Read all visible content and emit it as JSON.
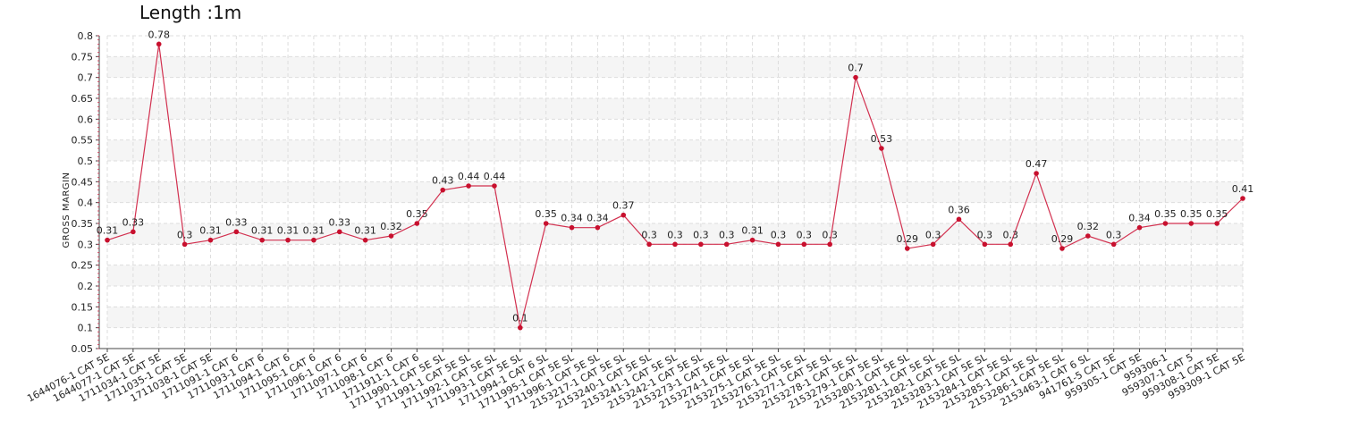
{
  "chart_data": {
    "type": "line",
    "title": "Length :1m",
    "xlabel": "",
    "ylabel": "GROSS MARGIN",
    "ylim": [
      0.05,
      0.8
    ],
    "yticks": [
      0.05,
      0.1,
      0.15,
      0.2,
      0.25,
      0.3,
      0.35,
      0.4,
      0.45,
      0.5,
      0.55,
      0.6,
      0.65,
      0.7,
      0.75,
      0.8
    ],
    "grid": true,
    "colors": {
      "line": "#d2304f",
      "marker": "#c8102e",
      "band": "#f5f5f5",
      "grid": "#dddddd"
    },
    "categories": [
      "1644076-1 CAT 5E",
      "1644077-1 CAT 5E",
      "1711034-1 CAT 5E",
      "1711035-1 CAT 5E",
      "1711038-1 CAT 5E",
      "1711091-1 CAT 6",
      "1711093-1 CAT 6",
      "1711094-1 CAT 6",
      "1711095-1 CAT 6",
      "1711096-1 CAT 6",
      "1711097-1 CAT 6",
      "1711098-1 CAT 6",
      "1711911-1 CAT 6",
      "1711990-1 CAT 5E SL",
      "1711991-1 CAT 5E SL",
      "1711992-1 CAT 5E SL",
      "1711993-1 CAT 5E SL",
      "1711994-1 CAT 6 SL",
      "1711995-1 CAT 5E SL",
      "1711996-1 CAT 5E SL",
      "2153217-1 CAT 5E SL",
      "2153240-1 CAT 5E SL",
      "2153241-1 CAT 5E SL",
      "2153242-1 CAT 5E SL",
      "2153273-1 CAT 5E SL",
      "2153274-1 CAT 5E SL",
      "2153275-1 CAT 5E SL",
      "2153276-1 CAT 5E SL",
      "2153277-1 CAT 5E SL",
      "2153278-1 CAT 5E SL",
      "2153279-1 CAT 5E SL",
      "2153280-1 CAT 5E SL",
      "2153281-1 CAT 5E SL",
      "2153282-1 CAT 5E SL",
      "2153283-1 CAT 5E SL",
      "2153284-1 CAT 5E SL",
      "2153285-1 CAT 5E SL",
      "2153286-1 CAT 5E SL",
      "2153463-1 CAT 6 SL",
      "941761-5 CAT 5E",
      "959305-1 CAT 5E",
      "959306-1",
      "959307-1 CAT 5",
      "959308-1 CAT 5E",
      "959309-1 CAT 5E"
    ],
    "values": [
      0.31,
      0.33,
      0.78,
      0.3,
      0.31,
      0.33,
      0.31,
      0.31,
      0.31,
      0.33,
      0.31,
      0.32,
      0.35,
      0.43,
      0.44,
      0.44,
      0.1,
      0.35,
      0.34,
      0.34,
      0.37,
      0.3,
      0.3,
      0.3,
      0.3,
      0.31,
      0.3,
      0.3,
      0.3,
      0.7,
      0.53,
      0.29,
      0.3,
      0.36,
      0.3,
      0.3,
      0.47,
      0.29,
      0.32,
      0.3,
      0.34,
      0.35,
      0.35,
      0.35,
      0.41
    ]
  }
}
